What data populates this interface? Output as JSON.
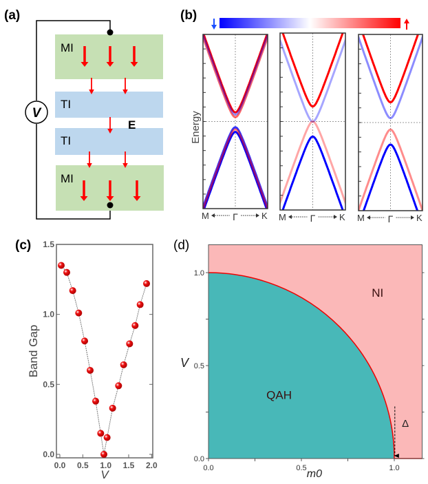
{
  "panels": {
    "a": {
      "label": "(a)",
      "layers": [
        "MI",
        "TI",
        "TI",
        "MI"
      ],
      "field_label": "E",
      "voltage_label": "V",
      "colors": {
        "MI": "#c6e0b4",
        "TI": "#bdd7ee",
        "arrow": "#ff0000"
      }
    },
    "b": {
      "label": "(b)",
      "ylabel": "Energy",
      "k_labels": {
        "left": "M",
        "center": "Γ",
        "right": "K"
      },
      "colorbar": {
        "low": "#0000ff",
        "mid": "#ffffff",
        "high": "#ff0000",
        "low_icon": "arrow-down-icon",
        "high_icon": "arrow-up-icon"
      }
    }
  },
  "chart_data": [
    {
      "id": "b",
      "type": "line",
      "title": "",
      "ylabel": "Energy",
      "xticklabels": [
        "M",
        "Γ",
        "K"
      ],
      "subplots": [
        {
          "bands": [
            {
              "color": "#ff0000",
              "edge_energy": 0.105,
              "sign": 1,
              "opacity": 1
            },
            {
              "color": "#ff0000",
              "edge_energy": 0.05,
              "sign": 1,
              "opacity": 0.6
            },
            {
              "color": "#0000ff",
              "edge_energy": 0.08,
              "sign": 1,
              "opacity": 0.4
            },
            {
              "color": "#0000ff",
              "edge_energy": -0.066,
              "sign": -1,
              "opacity": 0.8
            },
            {
              "color": "#0000ff",
              "edge_energy": -0.12,
              "sign": -1,
              "opacity": 1
            },
            {
              "color": "#ff0000",
              "edge_energy": -0.09,
              "sign": -1,
              "opacity": 0.5
            }
          ]
        },
        {
          "bands": [
            {
              "color": "#ff0000",
              "edge_energy": 0.17,
              "sign": 1,
              "opacity": 1
            },
            {
              "color": "#0000ff",
              "edge_energy": 0.0,
              "sign": 1,
              "opacity": 0.35
            },
            {
              "color": "#ff0000",
              "edge_energy": 0.0,
              "sign": -1,
              "opacity": 0.35
            },
            {
              "color": "#0000ff",
              "edge_energy": -0.17,
              "sign": -1,
              "opacity": 1
            }
          ]
        },
        {
          "bands": [
            {
              "color": "#ff0000",
              "edge_energy": 0.23,
              "sign": 1,
              "opacity": 1
            },
            {
              "color": "#0000ff",
              "edge_energy": 0.05,
              "sign": 1,
              "opacity": 0.45
            },
            {
              "color": "#ff0000",
              "edge_energy": -0.08,
              "sign": -1,
              "opacity": 0.45
            },
            {
              "color": "#0000ff",
              "edge_energy": -0.25,
              "sign": -1,
              "opacity": 1
            }
          ]
        }
      ]
    },
    {
      "id": "c",
      "label": "(c)",
      "type": "scatter",
      "xlabel": "V",
      "ylabel": "Band Gap",
      "xlim": [
        -0.075,
        2.025
      ],
      "ylim": [
        -0.025,
        1.5
      ],
      "xticks": [
        "0.0",
        "0.5",
        "1.0",
        "1.5",
        "2.0"
      ],
      "yticks": [
        "0.0",
        "0.5",
        "1.0",
        "1.5"
      ],
      "marker_color": "#ee1111",
      "x": [
        0.03,
        0.15,
        0.28,
        0.41,
        0.54,
        0.66,
        0.78,
        0.89,
        0.96,
        1.03,
        1.15,
        1.28,
        1.39,
        1.52,
        1.64,
        1.75,
        1.89
      ],
      "y": [
        1.35,
        1.3,
        1.17,
        1.01,
        0.81,
        0.6,
        0.38,
        0.15,
        0.0,
        0.12,
        0.33,
        0.49,
        0.64,
        0.79,
        0.92,
        1.07,
        1.22
      ]
    },
    {
      "id": "d",
      "label": "(d)",
      "type": "area",
      "xlabel": "m0",
      "ylabel": "V",
      "xlim": [
        0,
        1.15
      ],
      "ylim": [
        0,
        1.15
      ],
      "xticks": [
        "0.0",
        "0.5",
        "1.0"
      ],
      "yticks": [
        "0.0",
        "0.5",
        "1.0"
      ],
      "boundary": "V^2 + m0^2 = 1",
      "regions": [
        {
          "name": "QAH",
          "color": "#48b8b8"
        },
        {
          "name": "NI",
          "color": "#fbb8b8"
        }
      ],
      "boundary_color": "#ee0000",
      "annotation": "Δ"
    }
  ]
}
